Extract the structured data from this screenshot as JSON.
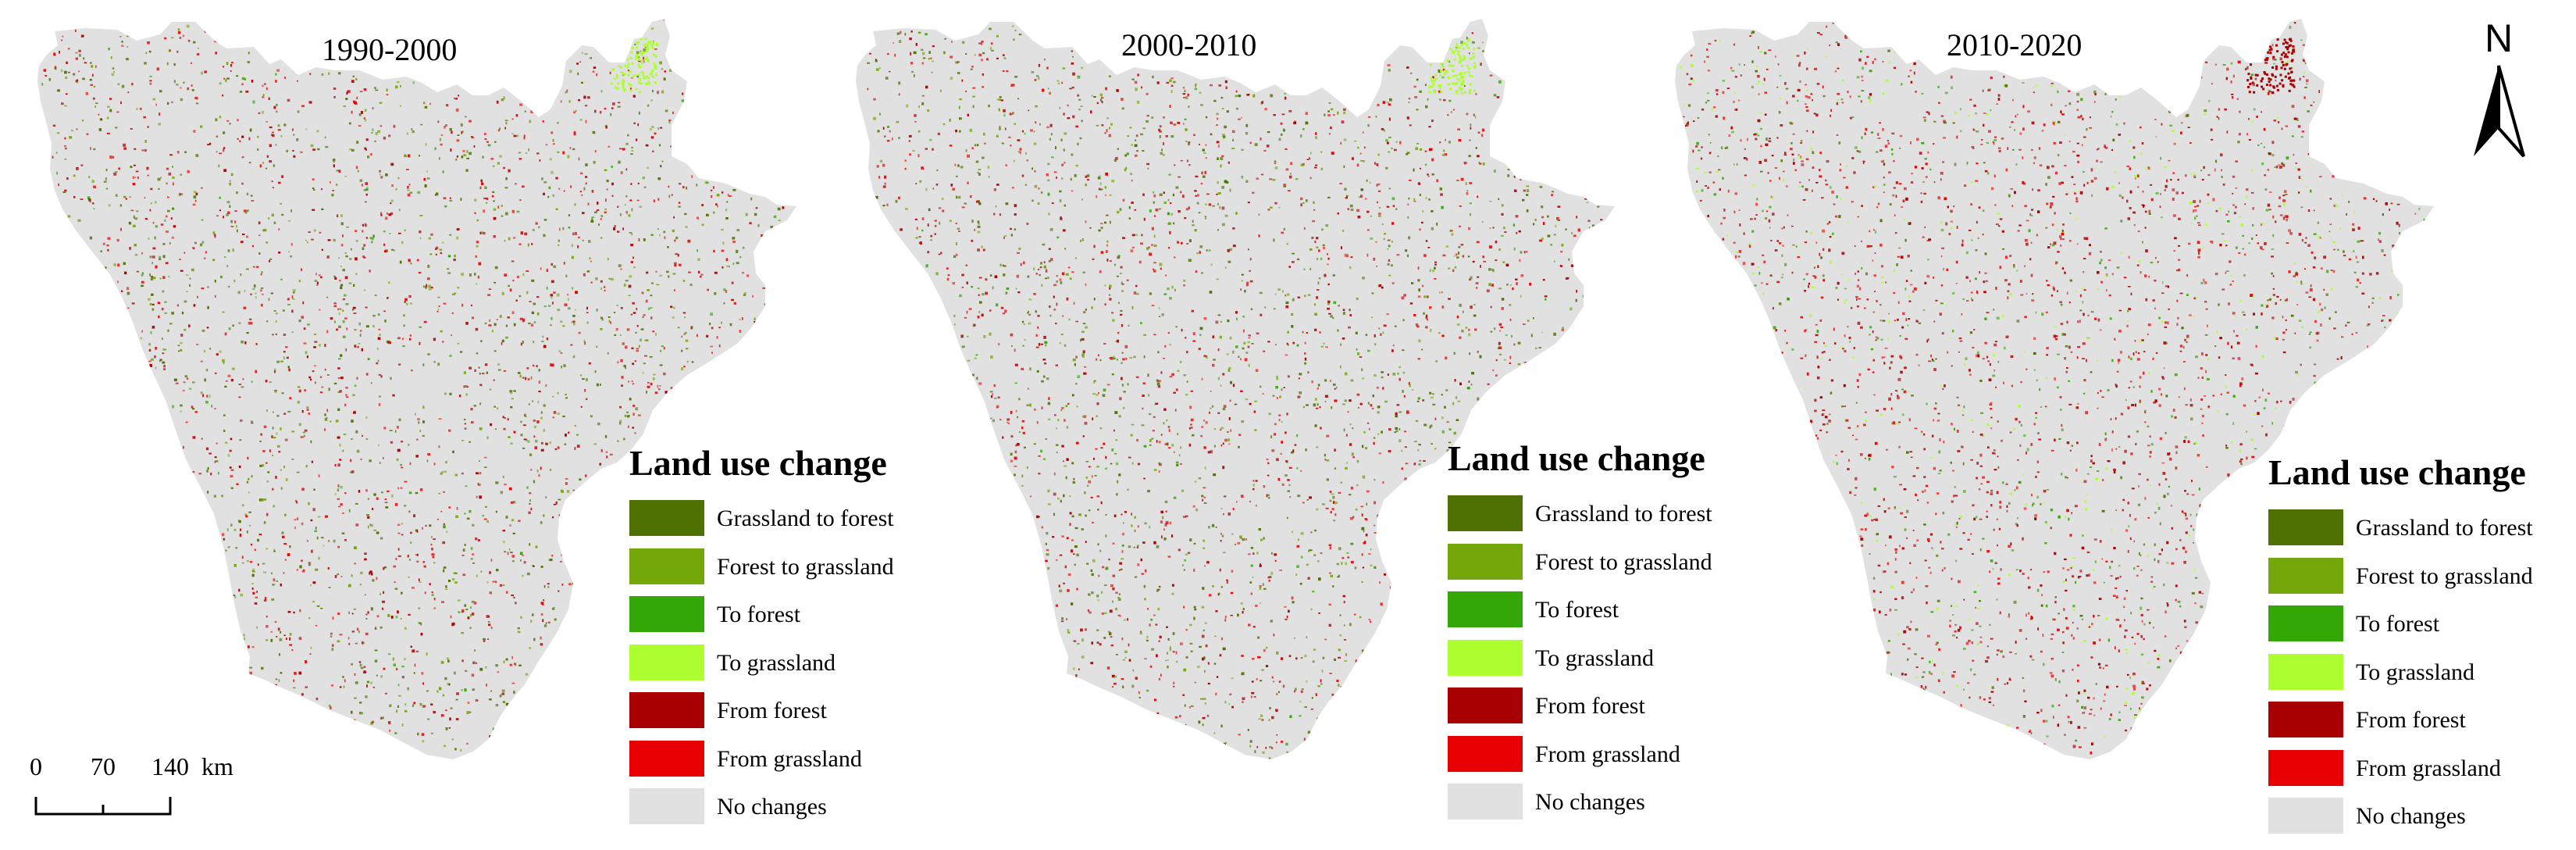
{
  "panels": [
    {
      "period": "1990-2000",
      "legend_title": "Land use change",
      "emphasis": "mixed"
    },
    {
      "period": "2000-2010",
      "legend_title": "Land use change",
      "emphasis": "mixed"
    },
    {
      "period": "2010-2020",
      "legend_title": "Land use change",
      "emphasis": "red"
    }
  ],
  "legend": [
    {
      "label": "Grassland to forest",
      "color": "#4e7000"
    },
    {
      "label": "Forest to grassland",
      "color": "#74a70a"
    },
    {
      "label": "To forest",
      "color": "#33a706"
    },
    {
      "label": "To grassland",
      "color": "#adff2f"
    },
    {
      "label": "From forest",
      "color": "#a80000"
    },
    {
      "label": "From grassland",
      "color": "#e80000"
    },
    {
      "label": "No changes",
      "color": "#e1e1e1"
    }
  ],
  "north_arrow": {
    "label": "N"
  },
  "scale_bar": {
    "ticks": [
      "0",
      "70",
      "140"
    ],
    "unit": "km"
  }
}
